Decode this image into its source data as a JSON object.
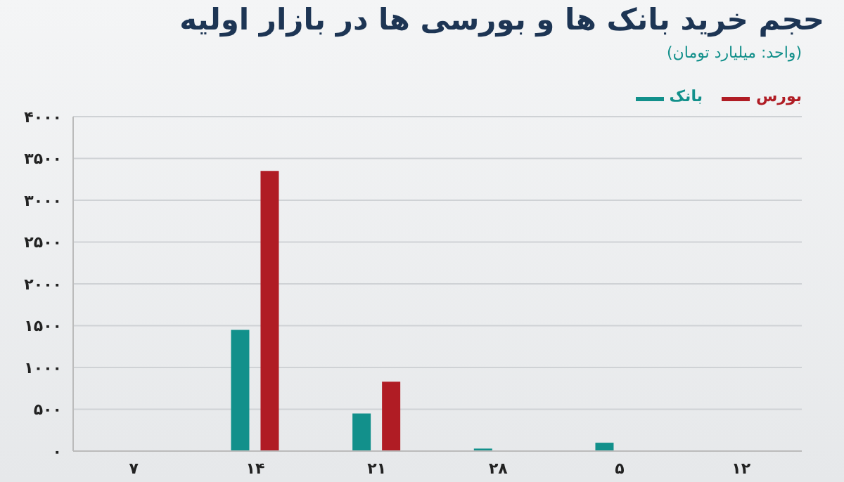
{
  "chart_data": {
    "type": "bar",
    "title": "حجم خرید بانک ها و بورسی ها در بازار اولیه",
    "subtitle": "(واحد: میلیارد تومان)",
    "categories": [
      "۷",
      "۱۴",
      "۲۱",
      "۲۸",
      "۵",
      "۱۲"
    ],
    "series": [
      {
        "name": "بانک",
        "color": "#12908b",
        "values": [
          0,
          1450,
          450,
          30,
          100,
          0
        ]
      },
      {
        "name": "بورس",
        "color": "#b01c24",
        "values": [
          0,
          3350,
          830,
          0,
          0,
          0
        ]
      }
    ],
    "ylim": [
      0,
      4000
    ],
    "yticks": [
      {
        "value": 0,
        "label": "۰"
      },
      {
        "value": 500,
        "label": "۵۰۰"
      },
      {
        "value": 1000,
        "label": "۱۰۰۰"
      },
      {
        "value": 1500,
        "label": "۱۵۰۰"
      },
      {
        "value": 2000,
        "label": "۲۰۰۰"
      },
      {
        "value": 2500,
        "label": "۲۵۰۰"
      },
      {
        "value": 3000,
        "label": "۳۰۰۰"
      },
      {
        "value": 3500,
        "label": "۳۵۰۰"
      },
      {
        "value": 4000,
        "label": "۴۰۰۰"
      }
    ],
    "grid": "y",
    "legend": "top right"
  }
}
